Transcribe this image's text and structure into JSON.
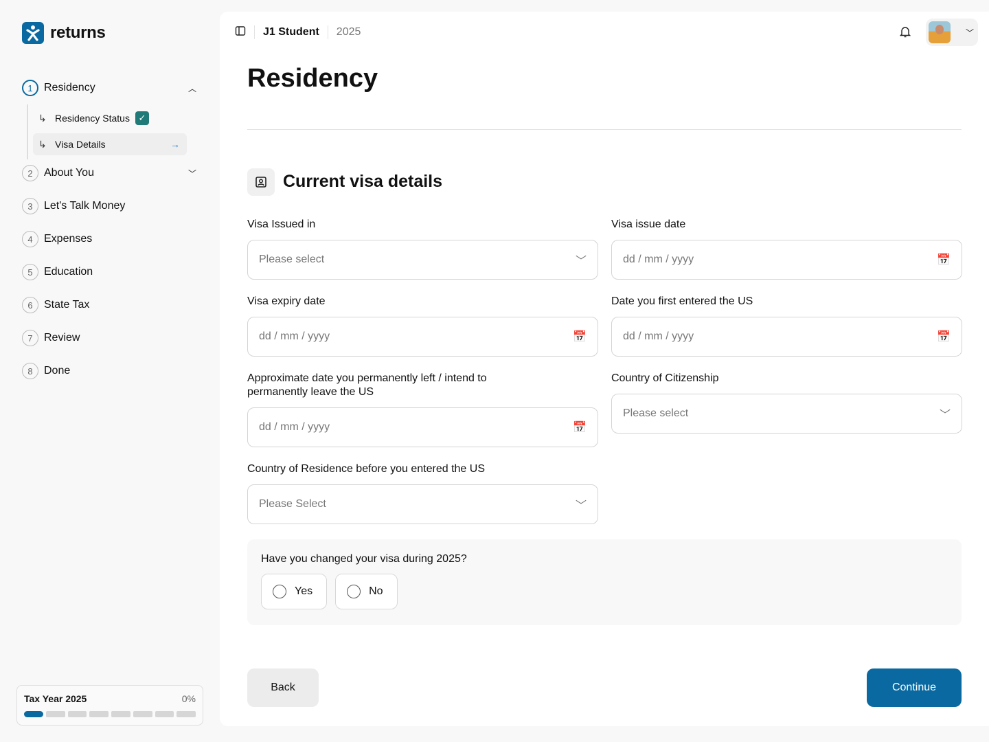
{
  "brand": {
    "name": "returns",
    "color": "#0a69a0"
  },
  "sidebar": {
    "steps": [
      {
        "num": "1",
        "label": "Residency",
        "expanded": true
      },
      {
        "num": "2",
        "label": "About You",
        "expanded": false
      },
      {
        "num": "3",
        "label": "Let's Talk Money"
      },
      {
        "num": "4",
        "label": "Expenses"
      },
      {
        "num": "5",
        "label": "Education"
      },
      {
        "num": "6",
        "label": "State Tax"
      },
      {
        "num": "7",
        "label": "Review"
      },
      {
        "num": "8",
        "label": "Done"
      }
    ],
    "substeps": [
      {
        "label": "Residency Status",
        "completed": true
      },
      {
        "label": "Visa Details",
        "active": true
      }
    ],
    "tax_year": {
      "label": "Tax Year 2025",
      "progress": "0%",
      "segments_total": 8,
      "segments_filled": 1
    }
  },
  "header": {
    "profile": "J1 Student",
    "year": "2025"
  },
  "page": {
    "title": "Residency",
    "section_title": "Current visa details"
  },
  "form": {
    "visa_issued_in": {
      "label": "Visa Issued in",
      "placeholder": "Please select"
    },
    "visa_issue_date": {
      "label": "Visa issue date",
      "placeholder": "dd / mm / yyyy"
    },
    "visa_expiry_date": {
      "label": "Visa expiry date",
      "placeholder": "dd / mm / yyyy"
    },
    "first_entered": {
      "label": "Date you first entered the US",
      "placeholder": "dd / mm / yyyy"
    },
    "left_date": {
      "label": "Approximate date you permanently left / intend to permanently leave the US",
      "placeholder": "dd / mm / yyyy"
    },
    "citizenship": {
      "label": "Country of Citizenship",
      "placeholder": "Please select"
    },
    "residence_before": {
      "label": "Country of Residence before you entered the US",
      "placeholder": "Please Select"
    },
    "visa_changed": {
      "question": "Have you changed your visa during 2025?",
      "yes": "Yes",
      "no": "No"
    }
  },
  "actions": {
    "back": "Back",
    "continue": "Continue"
  }
}
